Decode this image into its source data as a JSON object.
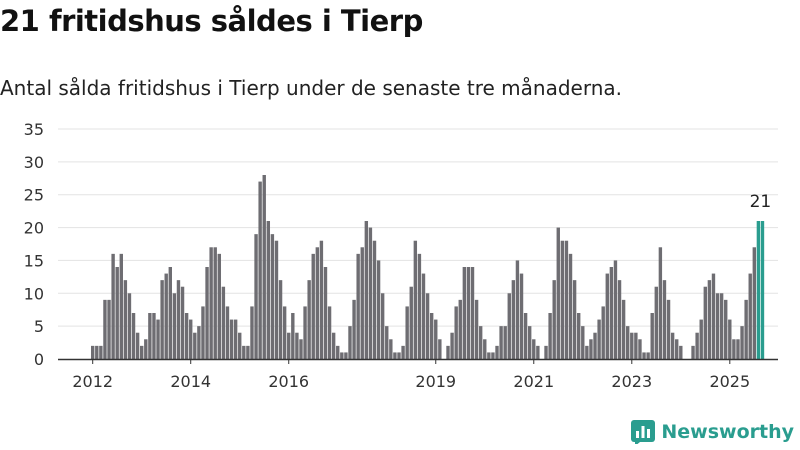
{
  "title": "21 fritidshus såldes i Tierp",
  "subtitle": "Antal sålda fritidshus i Tierp under de senaste tre månaderna.",
  "brand": {
    "name": "Newsworthy",
    "icon": "newsworthy-logo-icon"
  },
  "colors": {
    "bar": "#6e6d72",
    "highlight": "#2a9d8f",
    "grid": "#e3e3e3",
    "axis": "#333333"
  },
  "chart_data": {
    "type": "bar",
    "ylim": [
      0,
      35
    ],
    "y_ticks": [
      0,
      5,
      10,
      15,
      20,
      25,
      30,
      35
    ],
    "x_tick_labels": [
      {
        "label": "2012",
        "index": 0
      },
      {
        "label": "2014",
        "index": 24
      },
      {
        "label": "2016",
        "index": 48
      },
      {
        "label": "2019",
        "index": 84
      },
      {
        "label": "2021",
        "index": 108
      },
      {
        "label": "2023",
        "index": 132
      },
      {
        "label": "2025",
        "index": 156
      }
    ],
    "values": [
      2,
      2,
      2,
      9,
      9,
      16,
      14,
      16,
      12,
      10,
      7,
      4,
      2,
      3,
      7,
      7,
      6,
      12,
      13,
      14,
      10,
      12,
      11,
      7,
      6,
      4,
      5,
      8,
      14,
      17,
      17,
      16,
      11,
      8,
      6,
      6,
      4,
      2,
      2,
      8,
      19,
      27,
      28,
      21,
      19,
      18,
      12,
      8,
      4,
      7,
      4,
      3,
      8,
      12,
      16,
      17,
      18,
      14,
      8,
      4,
      2,
      1,
      1,
      5,
      9,
      16,
      17,
      21,
      20,
      18,
      15,
      10,
      5,
      3,
      1,
      1,
      2,
      8,
      11,
      18,
      16,
      13,
      10,
      7,
      6,
      3,
      0,
      2,
      4,
      8,
      9,
      14,
      14,
      14,
      9,
      5,
      3,
      1,
      1,
      2,
      5,
      5,
      10,
      12,
      15,
      13,
      7,
      5,
      3,
      2,
      0,
      2,
      7,
      12,
      20,
      18,
      18,
      16,
      12,
      7,
      5,
      2,
      3,
      4,
      6,
      8,
      13,
      14,
      15,
      12,
      9,
      5,
      4,
      4,
      3,
      1,
      1,
      7,
      11,
      17,
      12,
      9,
      4,
      3,
      2,
      0,
      0,
      2,
      4,
      6,
      11,
      12,
      13,
      10,
      10,
      9,
      6,
      3,
      3,
      5,
      9,
      13,
      17,
      21,
      21
    ],
    "highlight_count": 2,
    "annotation": "21"
  }
}
